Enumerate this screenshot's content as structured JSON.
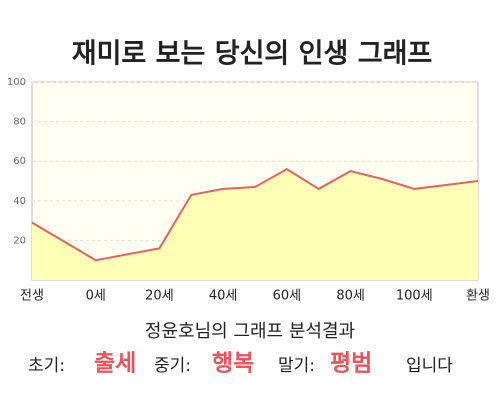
{
  "chart_data": {
    "type": "area",
    "title": "재미로 보는 당신의 인생 그래프",
    "categories": [
      "전생",
      null,
      "0세",
      null,
      "20세",
      null,
      "40세",
      null,
      "60세",
      null,
      "80세",
      null,
      "100세",
      null,
      "환생"
    ],
    "values": [
      29,
      19.5,
      10,
      13,
      16,
      43,
      46,
      47,
      56,
      46,
      55,
      51,
      46,
      48,
      50
    ],
    "color": "#e06464",
    "fill": "#ffffb8",
    "ylim": [
      0,
      100
    ],
    "yticks": [
      20,
      40,
      60,
      80,
      100
    ],
    "grid": true
  },
  "analysis": {
    "heading": "정윤호님의 그래프 분석결과",
    "items": [
      {
        "label": "초기:",
        "value": "출세"
      },
      {
        "label": "중기:",
        "value": "행복"
      },
      {
        "label": "말기:",
        "value": "평범"
      }
    ],
    "suffix": "입니다"
  }
}
